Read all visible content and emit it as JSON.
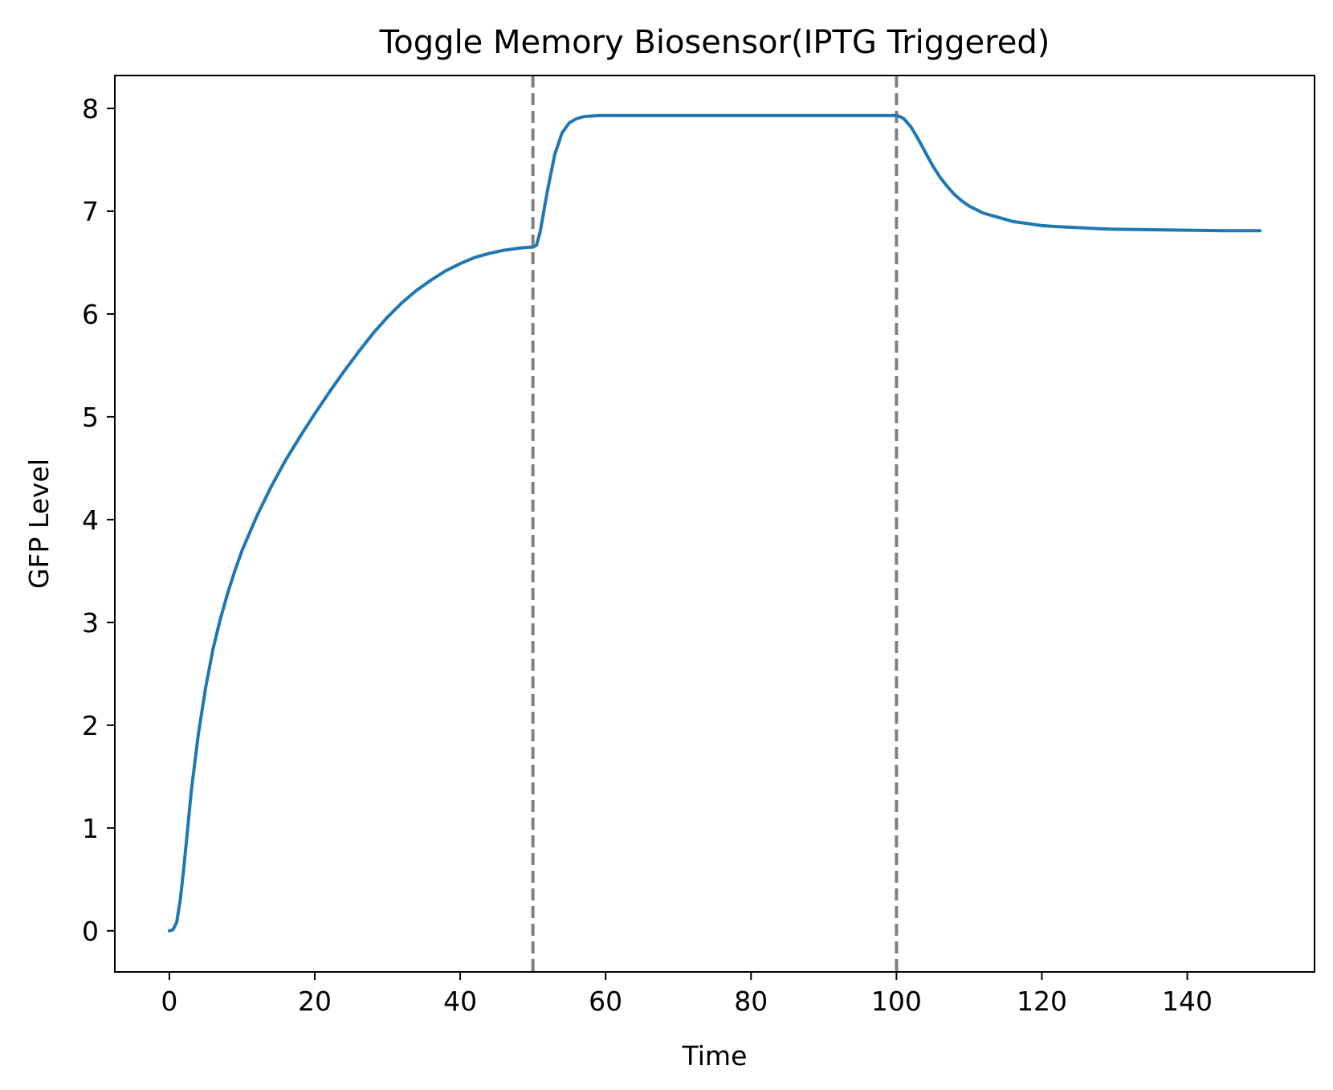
{
  "chart_data": {
    "type": "line",
    "title": "Toggle Memory Biosensor(IPTG Triggered)",
    "xlabel": "Time",
    "ylabel": "GFP Level",
    "xlim": [
      -7.5,
      157.5
    ],
    "ylim": [
      -0.4,
      8.32
    ],
    "xticks": [
      0,
      20,
      40,
      60,
      80,
      100,
      120,
      140
    ],
    "yticks": [
      0,
      1,
      2,
      3,
      4,
      5,
      6,
      7,
      8
    ],
    "grid": false,
    "legend": "none",
    "vlines": [
      {
        "x": 50,
        "style": "dashed",
        "color": "#808080"
      },
      {
        "x": 100,
        "style": "dashed",
        "color": "#808080"
      }
    ],
    "series": [
      {
        "color": "#1f77b4",
        "x": [
          0,
          0.5,
          1,
          1.5,
          2,
          2.5,
          3,
          4,
          5,
          6,
          7,
          8,
          9,
          10,
          12,
          14,
          16,
          18,
          20,
          22,
          24,
          26,
          28,
          30,
          32,
          34,
          36,
          38,
          40,
          42,
          44,
          46,
          48,
          49.5,
          50,
          50.5,
          51,
          52,
          53,
          54,
          55,
          56,
          57,
          58,
          59,
          60,
          62,
          65,
          70,
          80,
          90,
          95,
          99,
          100,
          100.5,
          101,
          102,
          103,
          104,
          105,
          106,
          107,
          108,
          109,
          110,
          112,
          114,
          116,
          118,
          120,
          122,
          125,
          128,
          130,
          135,
          140,
          145,
          150
        ],
        "y": [
          0.0,
          0.01,
          0.08,
          0.3,
          0.62,
          0.98,
          1.35,
          1.92,
          2.37,
          2.74,
          3.03,
          3.28,
          3.5,
          3.7,
          4.03,
          4.32,
          4.58,
          4.81,
          5.03,
          5.24,
          5.44,
          5.63,
          5.81,
          5.97,
          6.11,
          6.23,
          6.33,
          6.42,
          6.49,
          6.55,
          6.59,
          6.62,
          6.64,
          6.65,
          6.65,
          6.67,
          6.8,
          7.2,
          7.55,
          7.76,
          7.86,
          7.9,
          7.92,
          7.925,
          7.93,
          7.93,
          7.93,
          7.93,
          7.93,
          7.93,
          7.93,
          7.93,
          7.93,
          7.93,
          7.92,
          7.9,
          7.82,
          7.7,
          7.57,
          7.44,
          7.33,
          7.24,
          7.16,
          7.1,
          7.05,
          6.98,
          6.94,
          6.9,
          6.88,
          6.86,
          6.85,
          6.84,
          6.83,
          6.825,
          6.82,
          6.815,
          6.81,
          6.81
        ]
      }
    ]
  }
}
